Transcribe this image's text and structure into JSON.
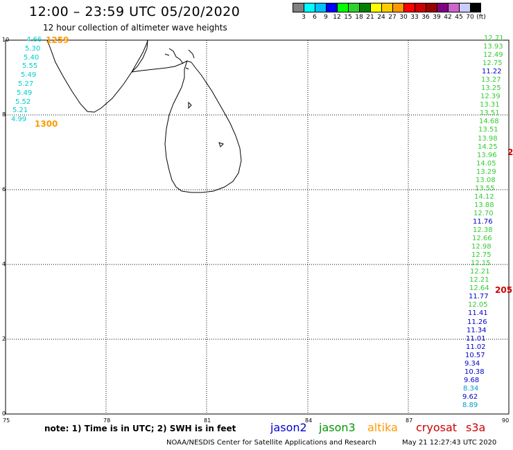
{
  "title": "12:00 – 23:59 UTC 05/20/2020",
  "subtitle": "12 hour collection of altimeter wave heights",
  "colorbar": {
    "colors": [
      "#808080",
      "#00ffff",
      "#00bfff",
      "#0000ff",
      "#00ff00",
      "#2ed12e",
      "#008000",
      "#ffff00",
      "#ffcc00",
      "#ff9900",
      "#ff0000",
      "#cc0000",
      "#990000",
      "#800080",
      "#cc66cc",
      "#ccccff",
      "#000000"
    ],
    "labels": [
      "3",
      "6",
      "9",
      "12",
      "15",
      "18",
      "21",
      "24",
      "27",
      "30",
      "33",
      "36",
      "39",
      "42",
      "45",
      "70",
      "(ft)"
    ]
  },
  "axes": {
    "y_ticks": [
      "10",
      "8",
      "6",
      "4",
      "2",
      "0"
    ],
    "x_ticks": [
      "75",
      "78",
      "81",
      "84",
      "87",
      "90"
    ]
  },
  "tracks": {
    "west": {
      "color": "#00cccc",
      "values": [
        "4.66",
        "5.30",
        "5.40",
        "5.55",
        "5.49",
        "5.27",
        "5.49",
        "5.52",
        "5.21",
        "4.99"
      ]
    },
    "west_times": {
      "color": "#ff9900",
      "values": [
        "1259",
        "1300"
      ]
    },
    "east": {
      "values": [
        {
          "v": "12.71",
          "c": "#33cc33"
        },
        {
          "v": "13.93",
          "c": "#33cc33"
        },
        {
          "v": "12.49",
          "c": "#33cc33"
        },
        {
          "v": "12.75",
          "c": "#33cc33"
        },
        {
          "v": "11.22",
          "c": "#0000cc"
        },
        {
          "v": "13.27",
          "c": "#33cc33"
        },
        {
          "v": "13.25",
          "c": "#33cc33"
        },
        {
          "v": "12.39",
          "c": "#33cc33"
        },
        {
          "v": "13.31",
          "c": "#33cc33"
        },
        {
          "v": "13.51",
          "c": "#33cc33"
        },
        {
          "v": "14.68",
          "c": "#33cc33"
        },
        {
          "v": "13.51",
          "c": "#33cc33"
        },
        {
          "v": "13.98",
          "c": "#33cc33"
        },
        {
          "v": "14.25",
          "c": "#33cc33"
        },
        {
          "v": "13.96",
          "c": "#33cc33"
        },
        {
          "v": "14.05",
          "c": "#33cc33"
        },
        {
          "v": "13.29",
          "c": "#33cc33"
        },
        {
          "v": "13.08",
          "c": "#33cc33"
        },
        {
          "v": "13.55",
          "c": "#33cc33"
        },
        {
          "v": "14.12",
          "c": "#33cc33"
        },
        {
          "v": "13.88",
          "c": "#33cc33"
        },
        {
          "v": "12.70",
          "c": "#33cc33"
        },
        {
          "v": "11.76",
          "c": "#0000cc"
        },
        {
          "v": "12.38",
          "c": "#33cc33"
        },
        {
          "v": "12.66",
          "c": "#33cc33"
        },
        {
          "v": "12.98",
          "c": "#33cc33"
        },
        {
          "v": "12.75",
          "c": "#33cc33"
        },
        {
          "v": "12.15",
          "c": "#33cc33"
        },
        {
          "v": "12.21",
          "c": "#33cc33"
        },
        {
          "v": "12.21",
          "c": "#33cc33"
        },
        {
          "v": "12.64",
          "c": "#33cc33"
        },
        {
          "v": "11.77",
          "c": "#0000cc"
        },
        {
          "v": "12.05",
          "c": "#33cc33"
        },
        {
          "v": "11.41",
          "c": "#0000cc"
        },
        {
          "v": "11.26",
          "c": "#0000cc"
        },
        {
          "v": "11.34",
          "c": "#0000cc"
        },
        {
          "v": "11.01",
          "c": "#0000cc"
        },
        {
          "v": "11.02",
          "c": "#0000cc"
        },
        {
          "v": "10.57",
          "c": "#0000cc"
        },
        {
          "v": "9.34",
          "c": "#0000cc"
        },
        {
          "v": "10.38",
          "c": "#0000cc"
        },
        {
          "v": "9.68",
          "c": "#0000cc"
        },
        {
          "v": "8.34",
          "c": "#0099cc"
        },
        {
          "v": "9.62",
          "c": "#0000cc"
        },
        {
          "v": "8.89",
          "c": "#0099cc"
        }
      ]
    },
    "east_times": {
      "color": "#cc0000",
      "values": [
        "2",
        "205"
      ]
    }
  },
  "note": "note: 1) Time is in UTC; 2) SWH is in feet",
  "legend": [
    {
      "label": "jason2",
      "color": "#0000cc"
    },
    {
      "label": "jason3",
      "color": "#009900"
    },
    {
      "label": "altika",
      "color": "#ff9900"
    },
    {
      "label": "cryosat",
      "color": "#cc0000"
    },
    {
      "label": "s3a",
      "color": "#cc0000"
    }
  ],
  "credit": "NOAA/NESDIS Center for Satellite Applications and Research",
  "stamp": "May 21 12:27:43 UTC 2020"
}
